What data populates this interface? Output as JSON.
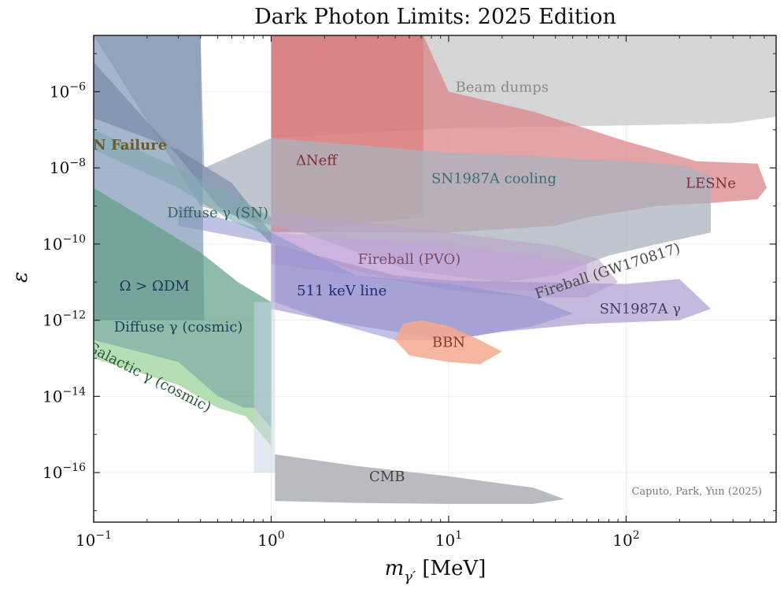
{
  "chart_data": {
    "type": "area",
    "title": "Dark Photon Limits: 2025 Edition",
    "xlabel": "m_γ′ [MeV]",
    "ylabel": "ε",
    "x_scale": "log",
    "y_scale": "log",
    "xlim": [
      0.1,
      700
    ],
    "ylim": [
      5e-18,
      3e-05
    ],
    "x_ticks": [
      {
        "value": 0.1,
        "base": "10",
        "exp": "−1"
      },
      {
        "value": 1,
        "base": "10",
        "exp": "0"
      },
      {
        "value": 10,
        "base": "10",
        "exp": "1"
      },
      {
        "value": 100,
        "base": "10",
        "exp": "2"
      }
    ],
    "y_ticks": [
      {
        "value": 1e-06,
        "base": "10",
        "exp": "−6"
      },
      {
        "value": 1e-08,
        "base": "10",
        "exp": "−8"
      },
      {
        "value": 1e-10,
        "base": "10",
        "exp": "−10"
      },
      {
        "value": 1e-12,
        "base": "10",
        "exp": "−12"
      },
      {
        "value": 1e-14,
        "base": "10",
        "exp": "−14"
      },
      {
        "value": 1e-16,
        "base": "10",
        "exp": "−16"
      }
    ],
    "grid": true,
    "credit": "Caputo, Park, Yun (2025)",
    "regions": [
      {
        "key": "beam",
        "label": "Beam dumps",
        "color": "#cfcfcf",
        "opacity": 0.85,
        "polygon": [
          [
            1.0,
            3e-05
          ],
          [
            700,
            3e-05
          ],
          [
            700,
            2.2e-07
          ],
          [
            400,
            1.5e-07
          ],
          [
            100,
            1.3e-07
          ],
          [
            30,
            1.2e-07
          ],
          [
            10,
            1.1e-07
          ],
          [
            3,
            8e-08
          ],
          [
            1.0,
            6e-08
          ]
        ]
      },
      {
        "key": "lesne",
        "label": "LESNe",
        "color": "#d9858a",
        "opacity": 0.75,
        "polygon": [
          [
            1.0,
            3e-05
          ],
          [
            7.2,
            3e-05
          ],
          [
            10,
            1e-06
          ],
          [
            30,
            3e-07
          ],
          [
            100,
            5e-08
          ],
          [
            250,
            1.5e-08
          ],
          [
            550,
            1.3e-08
          ],
          [
            620,
            3e-09
          ],
          [
            550,
            1.5e-09
          ],
          [
            300,
            1.2e-09
          ],
          [
            150,
            1e-09
          ],
          [
            60,
            5e-10
          ],
          [
            40,
            3e-10
          ],
          [
            10,
            2e-10
          ],
          [
            1.0,
            2e-10
          ]
        ]
      },
      {
        "key": "dneff",
        "label": "ΔNeff",
        "color": "#d97070",
        "opacity": 0.5,
        "polygon": [
          [
            1.0,
            3e-05
          ],
          [
            7.2,
            3e-05
          ],
          [
            7.2,
            5e-10
          ],
          [
            1.0,
            2e-10
          ]
        ]
      },
      {
        "key": "sn_cool",
        "label": "SN1987A cooling",
        "color": "#a9b3bd",
        "opacity": 0.75,
        "polygon": [
          [
            0.1,
            3e-05
          ],
          [
            0.4,
            3e-05
          ],
          [
            0.42,
            1e-08
          ],
          [
            1,
            6e-08
          ],
          [
            3,
            4e-08
          ],
          [
            10,
            2.5e-08
          ],
          [
            30,
            2e-08
          ],
          [
            100,
            1.5e-08
          ],
          [
            200,
            1.2e-08
          ],
          [
            300,
            6e-09
          ],
          [
            300,
            2e-10
          ],
          [
            150,
            1e-10
          ],
          [
            80,
            5e-11
          ],
          [
            40,
            1.5e-11
          ],
          [
            20,
            1e-11
          ],
          [
            6,
            2e-11
          ],
          [
            1.5,
            2e-10
          ],
          [
            0.8,
            4e-10
          ],
          [
            0.4,
            1e-09
          ]
        ]
      },
      {
        "key": "fireball_gw",
        "label": "Fireball (GW170817)",
        "color": "#b8a0c8",
        "opacity": 0.55,
        "polygon": [
          [
            1,
            7e-10
          ],
          [
            10,
            2e-10
          ],
          [
            40,
            9e-11
          ],
          [
            70,
            4e-11
          ],
          [
            90,
            1e-11
          ],
          [
            60,
            4e-12
          ],
          [
            30,
            4e-12
          ],
          [
            10,
            6e-12
          ],
          [
            3,
            2e-11
          ],
          [
            1,
            1e-10
          ]
        ]
      },
      {
        "key": "fireball_pvo",
        "label": "Fireball (PVO)",
        "color": "#c5a3d8",
        "opacity": 0.55,
        "polygon": [
          [
            1,
            2e-10
          ],
          [
            10,
            1e-10
          ],
          [
            30,
            5e-11
          ],
          [
            60,
            3e-11
          ],
          [
            60,
            1e-11
          ],
          [
            30,
            6e-12
          ],
          [
            10,
            7e-12
          ],
          [
            3,
            1.5e-11
          ],
          [
            1,
            3e-11
          ]
        ]
      },
      {
        "key": "sn_gamma",
        "label": "SN1987A γ",
        "color": "#a694cc",
        "opacity": 0.65,
        "polygon": [
          [
            1,
            1e-10
          ],
          [
            5,
            1.5e-11
          ],
          [
            10,
            1.1e-11
          ],
          [
            30,
            1e-11
          ],
          [
            100,
            9e-12
          ],
          [
            200,
            1.2e-11
          ],
          [
            300,
            2e-12
          ],
          [
            200,
            1e-12
          ],
          [
            60,
            8e-13
          ],
          [
            20,
            5e-13
          ],
          [
            10,
            3e-13
          ],
          [
            5,
            5e-13
          ],
          [
            2,
            1e-12
          ],
          [
            1,
            2e-12
          ]
        ]
      },
      {
        "key": "kev511",
        "label": "511 keV line",
        "color": "#8c8fd0",
        "opacity": 0.55,
        "polygon": [
          [
            0.3,
            1e-09
          ],
          [
            1,
            2e-10
          ],
          [
            3,
            1.5e-11
          ],
          [
            10,
            9e-12
          ],
          [
            30,
            4e-12
          ],
          [
            50,
            1.5e-12
          ],
          [
            30,
            7e-13
          ],
          [
            10,
            3e-13
          ],
          [
            5,
            3e-13
          ],
          [
            2,
            1e-12
          ],
          [
            1.05,
            3e-12
          ],
          [
            1.05,
            1e-10
          ],
          [
            0.3,
            3e-10
          ]
        ]
      },
      {
        "key": "bbn",
        "label": "BBN",
        "color": "#f6a98e",
        "opacity": 0.85,
        "polygon": [
          [
            5.5,
            8e-13
          ],
          [
            7,
            1e-12
          ],
          [
            10,
            7e-13
          ],
          [
            15,
            3e-13
          ],
          [
            20,
            1.5e-13
          ],
          [
            15,
            7e-14
          ],
          [
            10,
            8e-14
          ],
          [
            6,
            1.2e-13
          ],
          [
            5,
            3e-13
          ]
        ]
      },
      {
        "key": "omega",
        "label": "Ω > ΩDM",
        "color": "#7f95b5",
        "opacity": 0.7,
        "polygon": [
          [
            0.1,
            3e-05
          ],
          [
            0.4,
            3e-05
          ],
          [
            0.42,
            1e-12
          ],
          [
            0.1,
            1e-12
          ]
        ]
      },
      {
        "key": "sn_fail",
        "label": "SN Failure",
        "color": "#6b7da0",
        "opacity": 0.55,
        "polygon": [
          [
            0.1,
            6e-06
          ],
          [
            0.3,
            2e-08
          ],
          [
            0.5,
            1e-09
          ],
          [
            0.8,
            3e-10
          ],
          [
            1,
            1e-10
          ],
          [
            1,
            2e-10
          ],
          [
            0.6,
            4e-09
          ],
          [
            0.3,
            3e-08
          ],
          [
            0.1,
            2e-07
          ]
        ]
      },
      {
        "key": "diffuse_sn",
        "label": "Diffuse γ (SN)",
        "color": "#7fa9b0",
        "opacity": 0.6,
        "polygon": [
          [
            0.1,
            3e-08
          ],
          [
            0.3,
            3e-09
          ],
          [
            0.6,
            4e-10
          ],
          [
            1,
            1.5e-10
          ],
          [
            1,
            5e-10
          ],
          [
            0.6,
            2e-09
          ],
          [
            0.3,
            1e-08
          ],
          [
            0.1,
            1e-07
          ]
        ]
      },
      {
        "key": "diffuse_cosmic",
        "label": "Diffuse γ (cosmic)",
        "color": "#5e9e86",
        "opacity": 0.7,
        "polygon": [
          [
            0.1,
            3e-09
          ],
          [
            0.4,
            6e-11
          ],
          [
            0.65,
            1e-11
          ],
          [
            1,
            3e-12
          ],
          [
            1,
            1.5e-15
          ],
          [
            0.8,
            5e-15
          ],
          [
            0.7,
            5e-15
          ],
          [
            0.5,
            1e-14
          ],
          [
            0.3,
            8e-14
          ],
          [
            0.1,
            3e-13
          ]
        ]
      },
      {
        "key": "galactic",
        "label": "Galactic γ (cosmic)",
        "color": "#a8d8a8",
        "opacity": 0.85,
        "polygon": [
          [
            0.1,
            3e-13
          ],
          [
            0.3,
            8e-14
          ],
          [
            0.5,
            1e-14
          ],
          [
            0.7,
            5e-15
          ],
          [
            0.8,
            5e-15
          ],
          [
            1,
            1.5e-15
          ],
          [
            1,
            5e-16
          ],
          [
            0.72,
            3e-15
          ],
          [
            0.5,
            5e-15
          ],
          [
            0.3,
            2e-14
          ],
          [
            0.1,
            1e-13
          ]
        ]
      },
      {
        "key": "white_band",
        "label": "",
        "color": "#c9d6e6",
        "opacity": 0.5,
        "polygon": [
          [
            0.8,
            3e-12
          ],
          [
            1.05,
            3e-12
          ],
          [
            1.05,
            1e-16
          ],
          [
            0.8,
            1e-16
          ]
        ]
      },
      {
        "key": "cmb",
        "label": "CMB",
        "color": "#b4b8bd",
        "opacity": 0.95,
        "polygon": [
          [
            1.05,
            3e-16
          ],
          [
            3,
            1.5e-16
          ],
          [
            10,
            8e-17
          ],
          [
            30,
            4e-17
          ],
          [
            45,
            2e-17
          ],
          [
            30,
            1.5e-17
          ],
          [
            10,
            1.5e-17
          ],
          [
            3,
            1.6e-17
          ],
          [
            1.05,
            1.8e-17
          ]
        ]
      }
    ],
    "labels": [
      {
        "text": "Beam dumps",
        "x": 20,
        "y": 1e-06,
        "color": "#8a8a8a"
      },
      {
        "text": "SN Failure",
        "x": 0.15,
        "y": 3e-08,
        "color": "#6b5a2a",
        "bold": true
      },
      {
        "text": "ΔNeff",
        "x": 1.8,
        "y": 1.2e-08,
        "color": "#7a3030"
      },
      {
        "text": "SN1987A cooling",
        "x": 18,
        "y": 4e-09,
        "color": "#3a7070"
      },
      {
        "text": "LESNe",
        "x": 300,
        "y": 3e-09,
        "color": "#7a3040"
      },
      {
        "text": "Diffuse γ (SN)",
        "x": 0.5,
        "y": 5e-10,
        "color": "#2f6b50"
      },
      {
        "text": "Fireball (PVO)",
        "x": 6,
        "y": 3e-11,
        "color": "#7a4a6a"
      },
      {
        "text": "Ω > ΩDM",
        "x": 0.22,
        "y": 6e-12,
        "color": "#24325a"
      },
      {
        "text": "511 keV line",
        "x": 2.5,
        "y": 4.5e-12,
        "color": "#1f2c70"
      },
      {
        "text": "Fireball (GW170817)",
        "x": 80,
        "y": 1.5e-11,
        "color": "#4a4a4a",
        "rotate": -18
      },
      {
        "text": "SN1987A γ",
        "x": 120,
        "y": 1.5e-12,
        "color": "#4a3c6a"
      },
      {
        "text": "Diffuse γ (cosmic)",
        "x": 0.3,
        "y": 5e-13,
        "color": "#1f3f5a"
      },
      {
        "text": "BBN",
        "x": 10,
        "y": 2e-13,
        "color": "#8a3a2a"
      },
      {
        "text": "Galactic γ (cosmic)",
        "x": 0.2,
        "y": 2.5e-14,
        "color": "#2a5a3a",
        "rotate": 27
      },
      {
        "text": "CMB",
        "x": 4.5,
        "y": 6e-17,
        "color": "#444"
      }
    ]
  }
}
